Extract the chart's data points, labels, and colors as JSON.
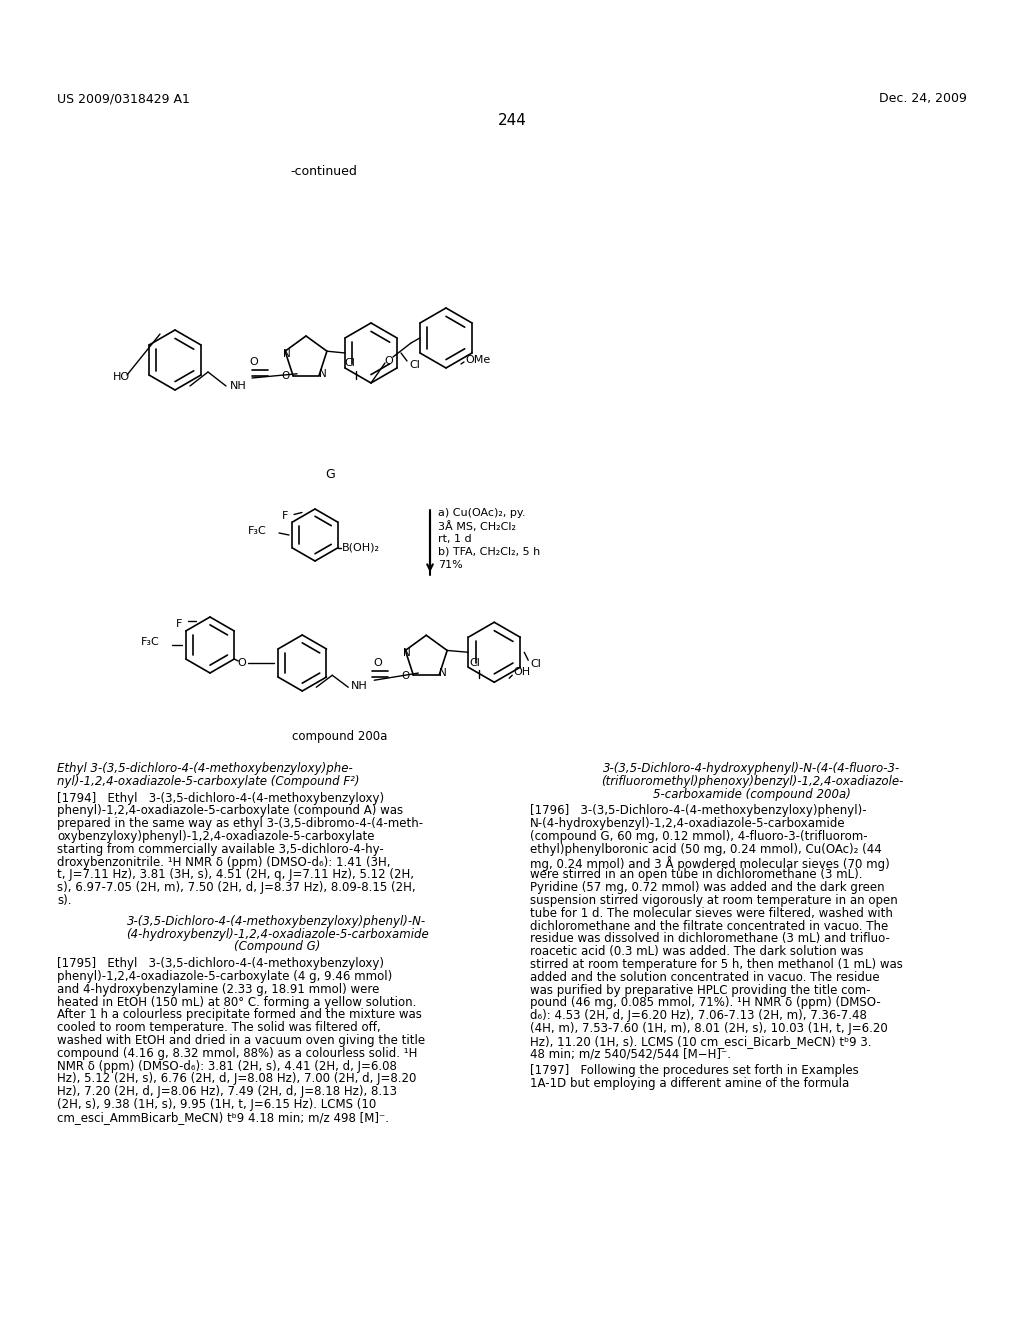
{
  "background_color": "#ffffff",
  "header_left": "US 2009/0318429 A1",
  "header_right": "Dec. 24, 2009",
  "page_number": "244",
  "continued_label": "-continued",
  "compound_label_g": "G",
  "reaction_conditions_line1": "a) Cu(OAc)₂, py.",
  "reaction_conditions_line2": "3Å MS, CH₂Cl₂",
  "reaction_conditions_line3": "rt, 1 d",
  "reaction_conditions_line4": "b) TFA, CH₂Cl₂, 5 h",
  "reaction_conditions_line5": "71%",
  "compound_label_200a": "compound 200a",
  "section_title_1_line1": "Ethyl 3-(3,5-dichloro-4-(4-methoxybenzyloxy)phe-",
  "section_title_1_line2": "nyl)-1,2,4-oxadiazole-5-carboxylate (Compound F²)",
  "section_title_2_line1": "3-(3,5-Dichloro-4-(4-methoxybenzyloxy)phenyl)-N-",
  "section_title_2_line2": "(4-hydroxybenzyl)-1,2,4-oxadiazole-5-carboxamide",
  "section_title_2_line3": "(Compound G)",
  "section_title_3_line1": "3-(3,5-Dichloro-4-hydroxyphenyl)-N-(4-(4-fluoro-3-",
  "section_title_3_line2": "(trifluoromethyl)phenoxy)benzyl)-1,2,4-oxadiazole-",
  "section_title_3_line3": "5-carboxamide (compound 200a)",
  "para_1794_lines": [
    "[1794]   Ethyl   3-(3,5-dichloro-4-(4-methoxybenzyloxy)",
    "phenyl)-1,2,4-oxadiazole-5-carboxylate (compound A) was",
    "prepared in the same way as ethyl 3-(3,5-dibromo-4-(4-meth-",
    "oxybenzyloxy)phenyl)-1,2,4-oxadiazole-5-carboxylate",
    "starting from commercially available 3,5-dichloro-4-hy-",
    "droxybenzonitrile. ¹H NMR δ (ppm) (DMSO-d₆): 1.41 (3H,",
    "t, J=7.11 Hz), 3.81 (3H, s), 4.51 (2H, q, J=7.11 Hz), 5.12 (2H,",
    "s), 6.97-7.05 (2H, m), 7.50 (2H, d, J=8.37 Hz), 8.09-8.15 (2H,",
    "s)."
  ],
  "para_1795_lines": [
    "[1795]   Ethyl   3-(3,5-dichloro-4-(4-methoxybenzyloxy)",
    "phenyl)-1,2,4-oxadiazole-5-carboxylate (4 g, 9.46 mmol)",
    "and 4-hydroxybenzylamine (2.33 g, 18.91 mmol) were",
    "heated in EtOH (150 mL) at 80° C. forming a yellow solution.",
    "After 1 h a colourless precipitate formed and the mixture was",
    "cooled to room temperature. The solid was filtered off,",
    "washed with EtOH and dried in a vacuum oven giving the title",
    "compound (4.16 g, 8.32 mmol, 88%) as a colourless solid. ¹H",
    "NMR δ (ppm) (DMSO-d₆): 3.81 (2H, s), 4.41 (2H, d, J=6.08",
    "Hz), 5.12 (2H, s), 6.76 (2H, d, J=8.08 Hz), 7.00 (2H, d, J=8.20",
    "Hz), 7.20 (2H, d, J=8.06 Hz), 7.49 (2H, d, J=8.18 Hz), 8.13",
    "(2H, s), 9.38 (1H, s), 9.95 (1H, t, J=6.15 Hz). LCMS (10",
    "cm_esci_AmmBicarb_MeCN) tᵇ9 4.18 min; m/z 498 [M]⁻."
  ],
  "para_1796_lines": [
    "[1796]   3-(3,5-Dichloro-4-(4-methoxybenzyloxy)phenyl)-",
    "N-(4-hydroxybenzyl)-1,2,4-oxadiazole-5-carboxamide",
    "(compound G, 60 mg, 0.12 mmol), 4-fluoro-3-(trifluorom-",
    "ethyl)phenylboronic acid (50 mg, 0.24 mmol), Cu(OAc)₂ (44",
    "mg, 0.24 mmol) and 3 Å powdered molecular sieves (70 mg)",
    "were stirred in an open tube in dichloromethane (3 mL).",
    "Pyridine (57 mg, 0.72 mmol) was added and the dark green",
    "suspension stirred vigorously at room temperature in an open",
    "tube for 1 d. The molecular sieves were filtered, washed with",
    "dichloromethane and the filtrate concentrated in vacuo. The",
    "residue was dissolved in dichloromethane (3 mL) and trifluo-",
    "roacetic acid (0.3 mL) was added. The dark solution was",
    "stirred at room temperature for 5 h, then methanol (1 mL) was",
    "added and the solution concentrated in vacuo. The residue",
    "was purified by preparative HPLC providing the title com-",
    "pound (46 mg, 0.085 mmol, 71%). ¹H NMR δ (ppm) (DMSO-",
    "d₆): 4.53 (2H, d, J=6.20 Hz), 7.06-7.13 (2H, m), 7.36-7.48",
    "(4H, m), 7.53-7.60 (1H, m), 8.01 (2H, s), 10.03 (1H, t, J=6.20",
    "Hz), 11.20 (1H, s). LCMS (10 cm_esci_Bicarb_MeCN) tᵇ9 3.",
    "48 min; m/z 540/542/544 [M−H]⁻."
  ],
  "para_1797_lines": [
    "[1797]   Following the procedures set forth in Examples",
    "1A-1D but employing a different amine of the formula"
  ]
}
